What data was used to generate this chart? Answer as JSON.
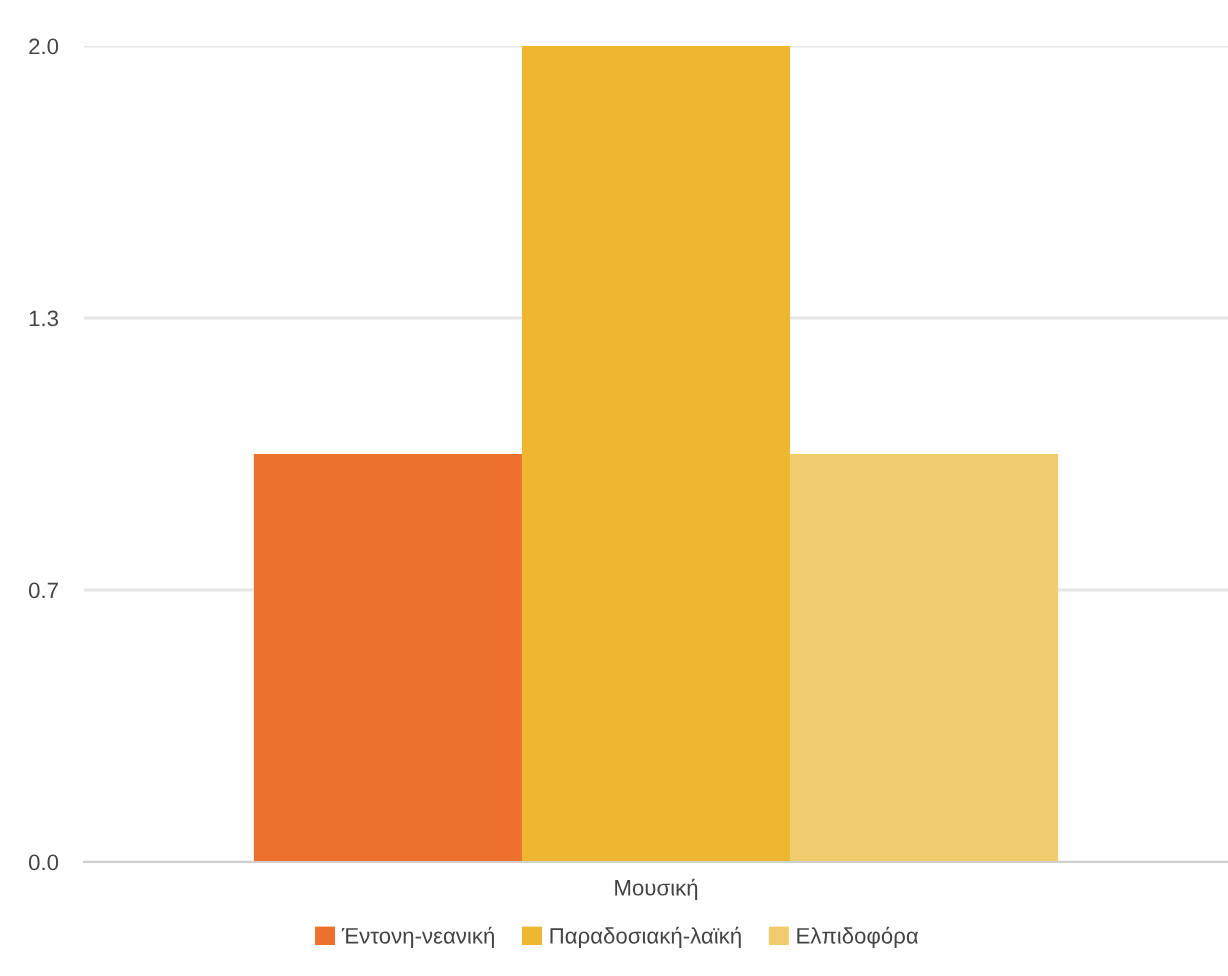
{
  "chart_data": {
    "type": "bar",
    "categories": [
      "Μουσική"
    ],
    "series": [
      {
        "name": "Έντονη-νεανική",
        "color": "#ec702e",
        "values": [
          1.0
        ]
      },
      {
        "name": "Παραδοσιακή-λαϊκή",
        "color": "#edb731",
        "values": [
          2.0
        ]
      },
      {
        "name": "Ελπιδοφόρα",
        "color": "#f1cc6e",
        "values": [
          1.0
        ]
      }
    ],
    "ylim": [
      0,
      2
    ],
    "yticks": [
      {
        "value": 0,
        "label": "0.0"
      },
      {
        "value": 0.6667,
        "label": "0.7"
      },
      {
        "value": 1.3333,
        "label": "1.3"
      },
      {
        "value": 2,
        "label": "2.0"
      }
    ],
    "grid": "y",
    "legend": "bottom"
  }
}
